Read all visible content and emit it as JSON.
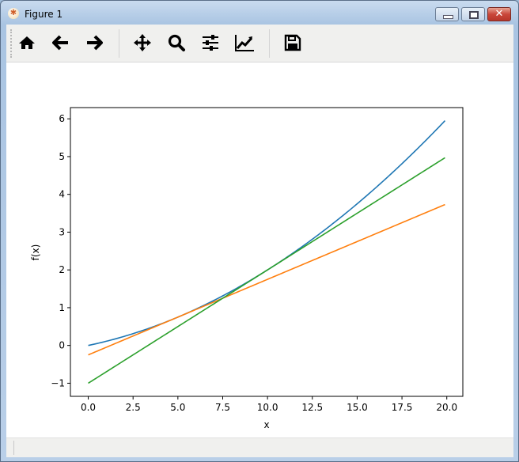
{
  "window": {
    "title": "Figure 1",
    "app_icon": "matplotlib-icon",
    "controls": [
      "minimize",
      "maximize",
      "close"
    ]
  },
  "toolbar": {
    "buttons": [
      {
        "name": "home",
        "icon": "home-icon"
      },
      {
        "name": "back",
        "icon": "arrow-left-icon"
      },
      {
        "name": "forward",
        "icon": "arrow-right-icon"
      },
      {
        "name": "pan",
        "icon": "move-icon"
      },
      {
        "name": "zoom",
        "icon": "magnifier-icon"
      },
      {
        "name": "subplots",
        "icon": "sliders-icon"
      },
      {
        "name": "edit-axes",
        "icon": "line-chart-icon"
      },
      {
        "name": "save",
        "icon": "floppy-icon"
      }
    ]
  },
  "status": {
    "text": ""
  },
  "chart_data": {
    "type": "line",
    "title": "",
    "xlabel": "x",
    "ylabel": "f(x)",
    "xlim": [
      -0.995,
      20.895
    ],
    "ylim": [
      -1.3475,
      6.2975
    ],
    "xticks": [
      0,
      2.5,
      5,
      7.5,
      10,
      12.5,
      15,
      17.5,
      20
    ],
    "xtick_labels": [
      "0.0",
      "2.5",
      "5.0",
      "7.5",
      "10.0",
      "12.5",
      "15.0",
      "17.5",
      "20.0"
    ],
    "yticks": [
      -1,
      0,
      1,
      2,
      3,
      4,
      5,
      6
    ],
    "ytick_labels": [
      "−1",
      "0",
      "1",
      "2",
      "3",
      "4",
      "5",
      "6"
    ],
    "grid": false,
    "x": {
      "start": 0,
      "stop": 19.9,
      "step": 0.1
    },
    "series": [
      {
        "color": "#1f77b4",
        "formula": "0.01*x^2 + 0.1*x",
        "points": [
          [
            0,
            0
          ],
          [
            5,
            0.75
          ],
          [
            10,
            2
          ],
          [
            15,
            3.75
          ],
          [
            19.9,
            5.95
          ]
        ]
      },
      {
        "color": "#ff7f0e",
        "formula": "0.2*x - 0.25",
        "points": [
          [
            0,
            -0.25
          ],
          [
            19.9,
            3.73
          ]
        ]
      },
      {
        "color": "#2ca02c",
        "formula": "0.3*x - 1",
        "points": [
          [
            0,
            -1
          ],
          [
            19.9,
            4.97
          ]
        ]
      }
    ]
  }
}
